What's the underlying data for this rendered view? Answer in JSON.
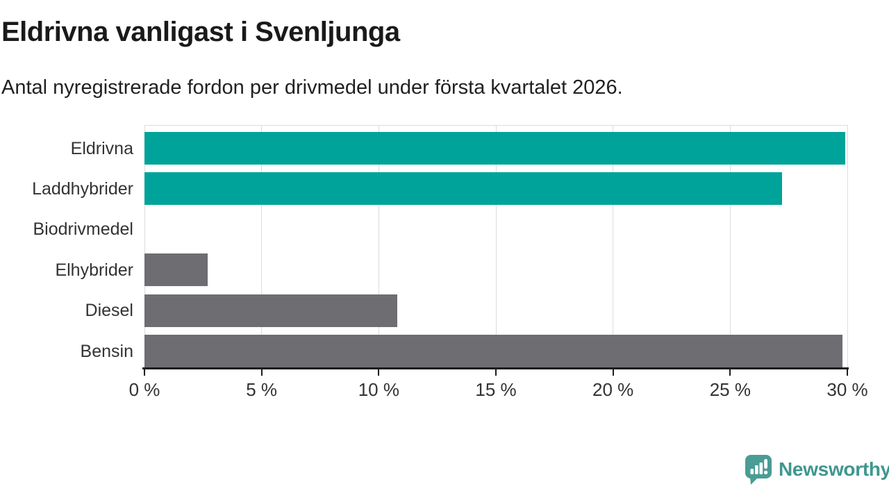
{
  "header": {
    "title": "Eldrivna vanligast i Svenljunga",
    "subtitle": "Antal nyregistrerade fordon per drivmedel under första kvartalet 2026."
  },
  "chart_data": {
    "type": "bar",
    "orientation": "horizontal",
    "title": "Eldrivna vanligast i Svenljunga",
    "subtitle": "Antal nyregistrerade fordon per drivmedel under första kvartalet 2026.",
    "categories": [
      "Eldrivna",
      "Laddhybrider",
      "Biodrivmedel",
      "Elhybrider",
      "Diesel",
      "Bensin"
    ],
    "values": [
      29.9,
      27.2,
      0,
      2.7,
      10.8,
      29.8
    ],
    "unit": "%",
    "bar_colors": [
      "#00a39a",
      "#00a39a",
      "#00a39a",
      "#6d6d72",
      "#6d6d72",
      "#6d6d72"
    ],
    "xlabel": "",
    "ylabel": "",
    "xlim": [
      0,
      30
    ],
    "x_ticks": [
      0,
      5,
      10,
      15,
      20,
      25,
      30
    ],
    "x_tick_labels": [
      "0 %",
      "5 %",
      "10 %",
      "15 %",
      "20 %",
      "25 %",
      "30 %"
    ],
    "grid": true,
    "legend": false
  },
  "colors": {
    "accent_teal": "#00a39a",
    "neutral_gray": "#6d6d72",
    "axis": "#1d1d1d",
    "gridline": "#dcdcdc",
    "text_dark": "#1a1a1a",
    "text_label": "#333333",
    "brand_teal": "#3e978f",
    "brand_icon_teal": "#4a9c94"
  },
  "footer": {
    "brand": "Newsworthy"
  }
}
